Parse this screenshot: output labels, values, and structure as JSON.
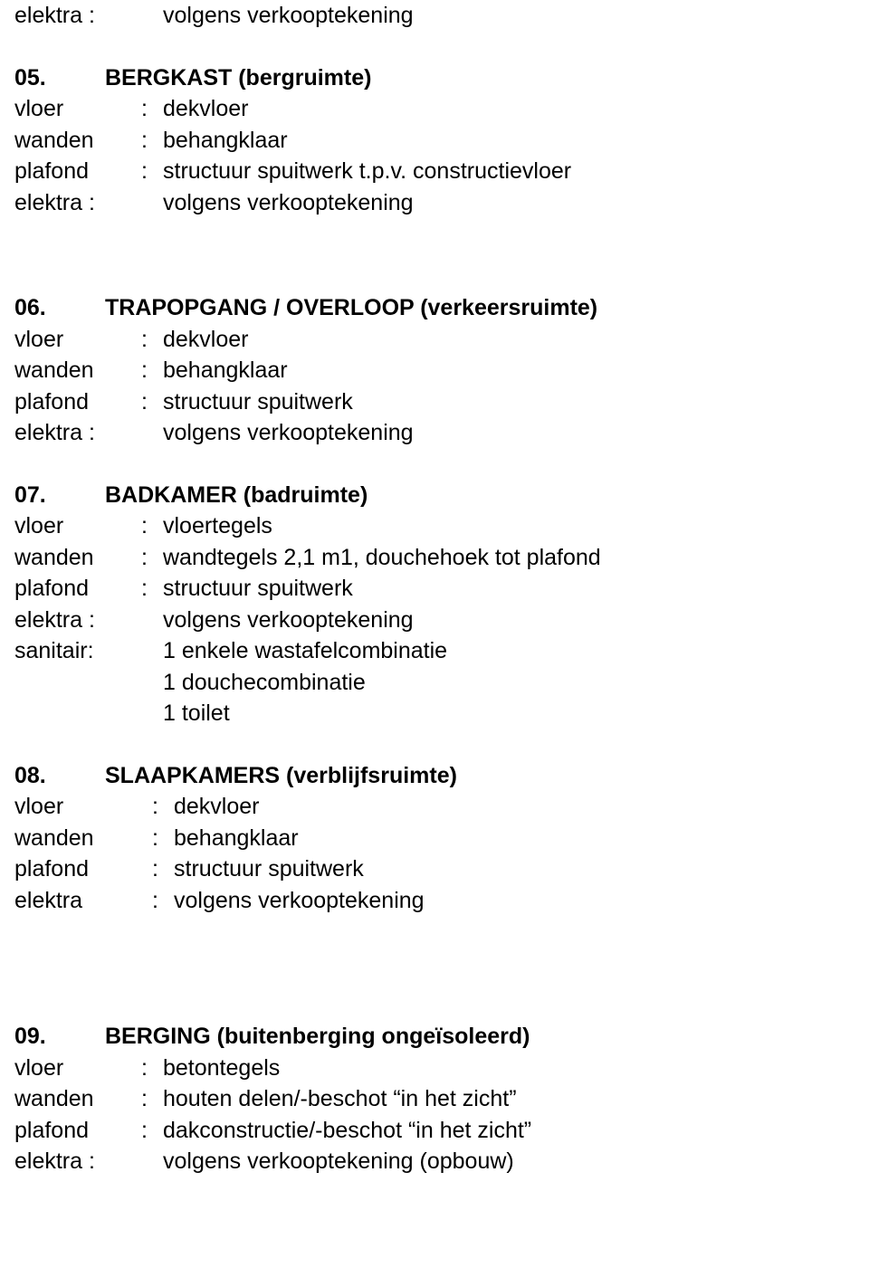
{
  "preamble": {
    "label": "elektra :",
    "value": "volgens verkooptekening"
  },
  "sections": [
    {
      "num": "05.",
      "title": "BERGKAST (bergruimte)",
      "rows": [
        {
          "label": "vloer",
          "value": "dekvloer"
        },
        {
          "label": "wanden",
          "value": "behangklaar"
        },
        {
          "label": "plafond",
          "value": "structuur spuitwerk t.p.v. constructievloer"
        },
        {
          "label": "elektra :",
          "value": "volgens verkooptekening",
          "nocolon": true
        }
      ]
    },
    {
      "num": "06.",
      "title": "TRAPOPGANG / OVERLOOP (verkeersruimte)",
      "rows": [
        {
          "label": "vloer",
          "value": "dekvloer"
        },
        {
          "label": "wanden",
          "value": "behangklaar"
        },
        {
          "label": "plafond",
          "value": "structuur spuitwerk"
        },
        {
          "label": "elektra :",
          "value": "volgens verkooptekening",
          "nocolon": true
        }
      ]
    },
    {
      "num": "07.",
      "title": "BADKAMER (badruimte)",
      "rows": [
        {
          "label": "vloer",
          "value": "vloertegels"
        },
        {
          "label": "wanden",
          "value": "wandtegels 2,1 m1, douchehoek tot plafond"
        },
        {
          "label": "plafond",
          "value": "structuur spuitwerk"
        },
        {
          "label": "elektra :",
          "value": "volgens verkooptekening",
          "nocolon": true
        },
        {
          "label": "sanitair:",
          "value": "1 enkele wastafelcombinatie",
          "nocolon": true
        },
        {
          "label": "",
          "value": "1 douchecombinatie",
          "nocolon": true
        },
        {
          "label": "",
          "value": "1 toilet",
          "nocolon": true
        }
      ]
    },
    {
      "num": "08.",
      "title": "SLAAPKAMERS (verblijfsruimte)",
      "rows": [
        {
          "label": "vloer",
          "value": "dekvloer",
          "cls": "row-08"
        },
        {
          "label": "wanden",
          "value": "behangklaar",
          "cls": "row-08"
        },
        {
          "label": "plafond",
          "value": "structuur spuitwerk",
          "cls": "row-08"
        },
        {
          "label": "elektra",
          "value": "volgens verkooptekening",
          "cls": "row-08"
        }
      ]
    },
    {
      "num": "09.",
      "title": "BERGING (buitenberging ongeïsoleerd)",
      "rows": [
        {
          "label": "vloer",
          "value": "betontegels"
        },
        {
          "label": "wanden",
          "value": "houten delen/-beschot “in het zicht”"
        },
        {
          "label": "plafond",
          "value": "dakconstructie/-beschot “in het zicht”"
        },
        {
          "label": "elektra :",
          "value": "volgens verkooptekening (opbouw)",
          "nocolon": true
        }
      ]
    }
  ]
}
